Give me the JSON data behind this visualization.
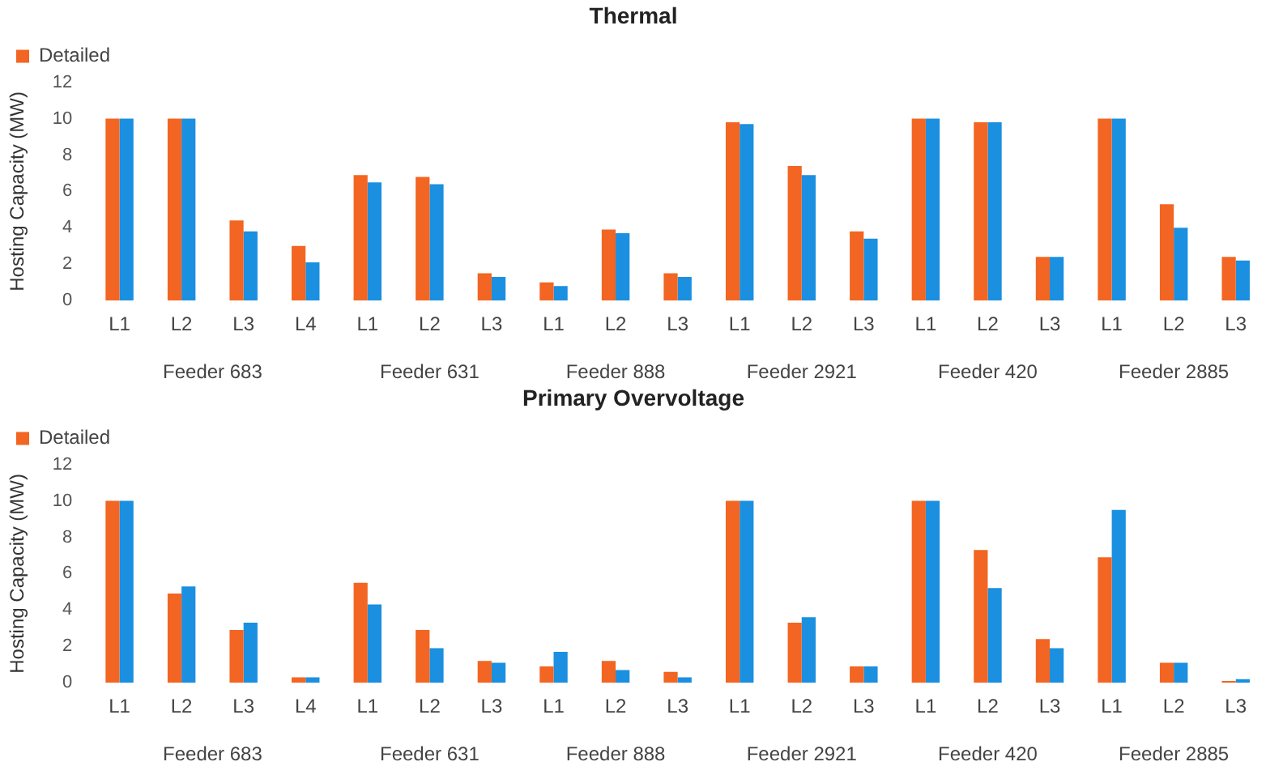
{
  "chart_data": [
    {
      "type": "bar",
      "title": "Thermal",
      "ylabel": "Hosting Capacity (MW)",
      "categories": [
        "L1",
        "L2",
        "L3",
        "L4",
        "L1",
        "L2",
        "L3",
        "L1",
        "L2",
        "L3",
        "L1",
        "L2",
        "L3",
        "L1",
        "L2",
        "L3",
        "L1",
        "L2",
        "L3"
      ],
      "series": [
        {
          "name": "Detailed",
          "color": "#f26522",
          "values": [
            10,
            10,
            4.4,
            3,
            6.9,
            6.8,
            1.5,
            1,
            3.9,
            1.5,
            9.8,
            7.4,
            3.8,
            10,
            9.8,
            2.4,
            10,
            5.3,
            2.4
          ]
        },
        {
          "color": "#1b8fe0",
          "values": [
            10,
            10,
            3.8,
            2.1,
            6.5,
            6.4,
            1.3,
            0.8,
            3.7,
            1.3,
            9.7,
            6.9,
            3.4,
            10,
            9.8,
            2.4,
            10,
            4,
            2.2
          ]
        }
      ],
      "ylim": [
        0,
        12
      ],
      "yticks": [
        0,
        2,
        4,
        6,
        8,
        10,
        12
      ],
      "grid": false,
      "legend": "top left",
      "annotations": [
        "Feeder 683",
        "Feeder 631",
        "Feeder 888",
        "Feeder 2921",
        "Feeder 420",
        "Feeder 2885"
      ]
    },
    {
      "type": "bar",
      "title": "Primary Overvoltage",
      "ylabel": "Hosting Capacity (MW)",
      "categories": [
        "L1",
        "L2",
        "L3",
        "L4",
        "L1",
        "L2",
        "L3",
        "L1",
        "L2",
        "L3",
        "L1",
        "L2",
        "L3",
        "L1",
        "L2",
        "L3",
        "L1",
        "L2",
        "L3"
      ],
      "series": [
        {
          "name": "Detailed",
          "color": "#f26522",
          "values": [
            10,
            4.9,
            2.9,
            0.3,
            5.5,
            2.9,
            1.2,
            0.9,
            1.2,
            0.6,
            10,
            3.3,
            0.9,
            10,
            7.3,
            2.4,
            6.9,
            1.1,
            0.1
          ]
        },
        {
          "color": "#1b8fe0",
          "values": [
            10,
            5.3,
            3.3,
            0.3,
            4.3,
            1.9,
            1.1,
            1.7,
            0.7,
            0.3,
            10,
            3.6,
            0.9,
            10,
            5.2,
            1.9,
            9.5,
            1.1,
            0.2
          ]
        }
      ],
      "ylim": [
        0,
        12
      ],
      "yticks": [
        0,
        2,
        4,
        6,
        8,
        10,
        12
      ],
      "grid": false,
      "legend": "top left",
      "annotations": [
        "Feeder 683",
        "Feeder 631",
        "Feeder 888",
        "Feeder 2921",
        "Feeder 420",
        "Feeder 2885"
      ]
    }
  ]
}
